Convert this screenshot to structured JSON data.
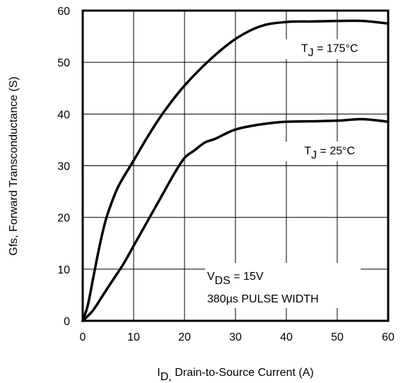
{
  "chart_data": {
    "type": "line",
    "xlabel_main": "I",
    "xlabel_sub": "D,",
    "xlabel_rest": " Drain-to-Source Current (A)",
    "ylabel": "Gfs, Forward Transconductance (S)",
    "xlim": [
      0,
      60
    ],
    "ylim": [
      0,
      60
    ],
    "xticks": [
      0,
      10,
      20,
      30,
      40,
      50,
      60
    ],
    "yticks": [
      0,
      10,
      20,
      30,
      40,
      50,
      60
    ],
    "grid": true,
    "series": [
      {
        "label_main": "T",
        "label_sub": "J",
        "label_rest": " = 175°C",
        "x": [
          0,
          1,
          2,
          3,
          4,
          5,
          7,
          10,
          13,
          16,
          20,
          25,
          30,
          35,
          40,
          45,
          50,
          55,
          60
        ],
        "y": [
          0,
          3,
          8,
          13,
          17.5,
          21,
          26,
          31,
          36,
          40.5,
          45.5,
          50.5,
          54.5,
          57,
          57.8,
          57.9,
          58,
          58,
          57.5
        ]
      },
      {
        "label_main": "T",
        "label_sub": "J",
        "label_rest": " = 25°C",
        "x": [
          0,
          2,
          4,
          6,
          8,
          10,
          12,
          14,
          16,
          18,
          20,
          22,
          24,
          26,
          30,
          35,
          40,
          45,
          50,
          55,
          60
        ],
        "y": [
          0,
          2,
          5,
          8,
          11,
          14.5,
          18,
          21.5,
          25,
          28.5,
          31.5,
          33,
          34.5,
          35.2,
          37,
          38,
          38.5,
          38.6,
          38.7,
          39,
          38.5
        ]
      }
    ],
    "annotation": {
      "line1_main": "V",
      "line1_sub": "DS",
      "line1_rest": " = 15V",
      "line2": "380µs PULSE WIDTH"
    }
  }
}
